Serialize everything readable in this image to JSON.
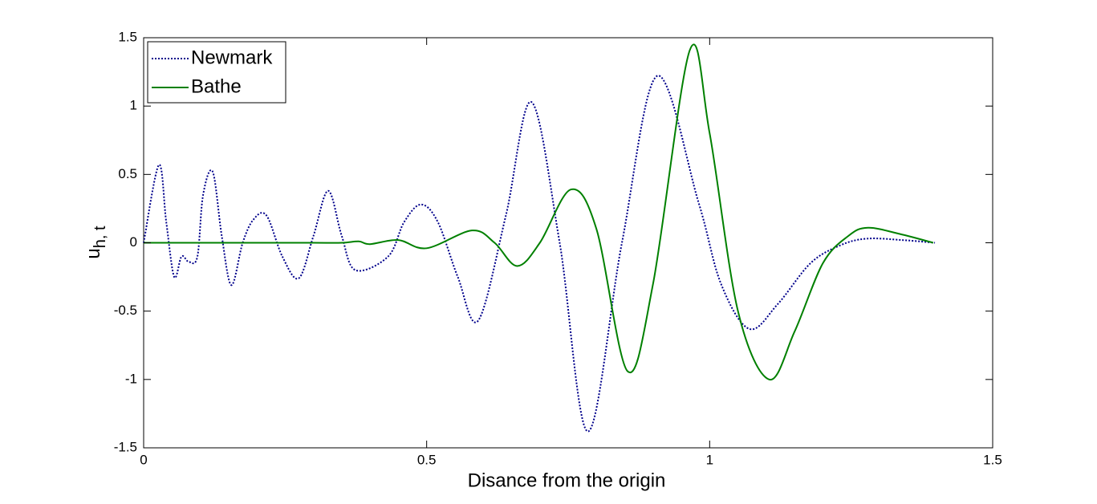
{
  "chart_data": {
    "type": "line",
    "xlabel": "Disance from the origin",
    "ylabel": {
      "text": "u",
      "subscript": "h, t"
    },
    "xlim": [
      0,
      1.5
    ],
    "xticks": [
      0,
      0.5,
      1,
      1.5
    ],
    "ylim": [
      -1.5,
      1.5
    ],
    "yticks": [
      -1.5,
      -1,
      -0.5,
      0,
      0.5,
      1,
      1.5
    ],
    "legend": "upper left",
    "series": [
      {
        "name": "Newmark",
        "color": "#00008b",
        "style": "dotted",
        "x": [
          0,
          0.027,
          0.04,
          0.054,
          0.067,
          0.08,
          0.095,
          0.105,
          0.122,
          0.138,
          0.155,
          0.175,
          0.194,
          0.217,
          0.245,
          0.274,
          0.3,
          0.326,
          0.35,
          0.374,
          0.432,
          0.46,
          0.49,
          0.52,
          0.555,
          0.591,
          0.64,
          0.685,
          0.735,
          0.785,
          0.845,
          0.907,
          0.98,
          1.02,
          1.07,
          1.12,
          1.178,
          1.23,
          1.277,
          1.34,
          1.398
        ],
        "values": [
          0,
          0.57,
          0.15,
          -0.25,
          -0.1,
          -0.14,
          -0.1,
          0.35,
          0.52,
          0.05,
          -0.31,
          0.0,
          0.17,
          0.2,
          -0.1,
          -0.26,
          0.05,
          0.38,
          0.05,
          -0.2,
          -0.1,
          0.15,
          0.28,
          0.15,
          -0.25,
          -0.57,
          0.2,
          1.03,
          0,
          -1.38,
          0,
          1.22,
          0.3,
          -0.3,
          -0.63,
          -0.45,
          -0.15,
          -0.02,
          0.03,
          0.02,
          0
        ]
      },
      {
        "name": "Bathe",
        "color": "#008000",
        "style": "solid",
        "x": [
          0,
          0.1,
          0.2,
          0.3,
          0.35,
          0.38,
          0.4,
          0.45,
          0.5,
          0.58,
          0.62,
          0.66,
          0.7,
          0.755,
          0.8,
          0.855,
          0.9,
          0.965,
          1.0,
          1.05,
          1.105,
          1.15,
          1.2,
          1.245,
          1.28,
          1.34,
          1.395
        ],
        "values": [
          0,
          0,
          0,
          0,
          0,
          0.01,
          -0.01,
          0.02,
          -0.04,
          0.09,
          0,
          -0.17,
          0.0,
          0.39,
          0.1,
          -0.94,
          -0.3,
          1.41,
          0.8,
          -0.5,
          -1.0,
          -0.65,
          -0.15,
          0.05,
          0.11,
          0.06,
          0
        ]
      }
    ]
  }
}
